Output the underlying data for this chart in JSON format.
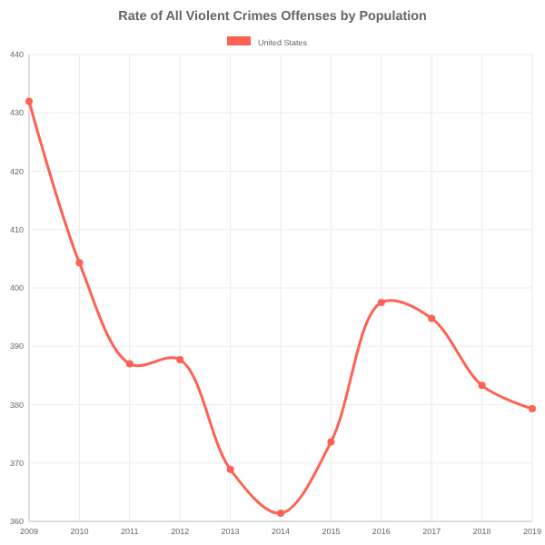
{
  "chart_data": {
    "type": "line",
    "title": "Rate of All Violent Crimes Offenses by Population",
    "x": [
      2009,
      2010,
      2011,
      2012,
      2013,
      2014,
      2015,
      2016,
      2017,
      2018,
      2019
    ],
    "series": [
      {
        "name": "United States",
        "color": "#ff6154",
        "values": [
          432,
          404.3,
          387,
          387.7,
          368.9,
          361.4,
          373.6,
          397.5,
          394.8,
          383.3,
          379.3
        ]
      }
    ],
    "xlim": [
      2009,
      2019
    ],
    "xticks": [
      2009,
      2010,
      2011,
      2012,
      2013,
      2014,
      2015,
      2016,
      2017,
      2018,
      2019
    ],
    "ylim": [
      360,
      440
    ],
    "yticks": [
      360,
      370,
      380,
      390,
      400,
      410,
      420,
      430,
      440
    ],
    "grid": true,
    "legend": "top",
    "marker": "circle",
    "line_style": "solid"
  }
}
